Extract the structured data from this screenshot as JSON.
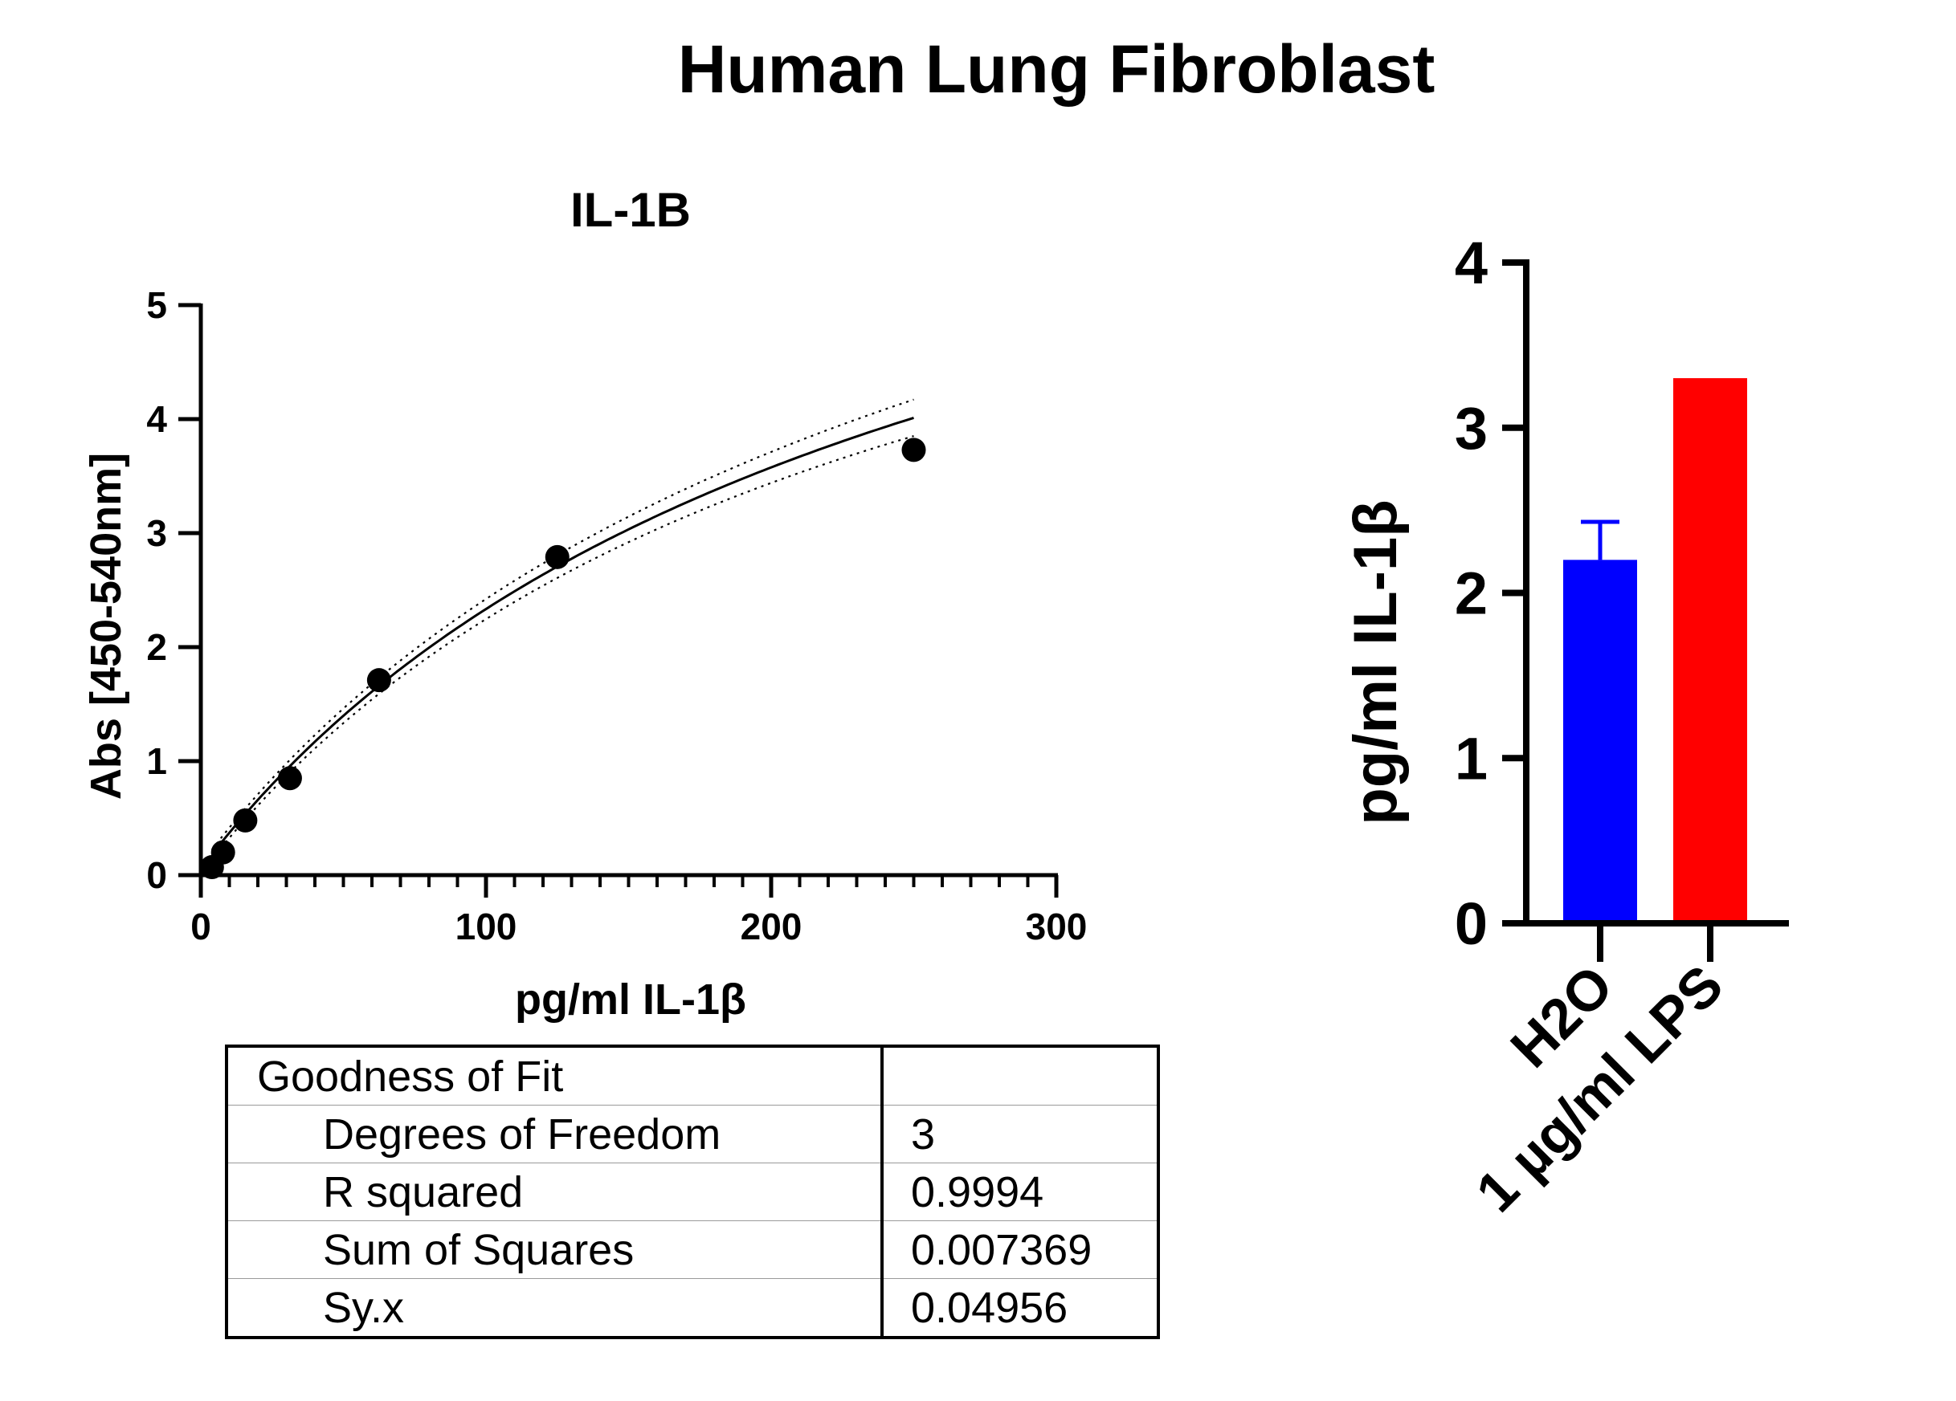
{
  "figure_title": "Human Lung Fibroblast",
  "chart_data": [
    {
      "type": "scatter",
      "title": "IL-1B",
      "xlabel": "pg/ml IL-1β",
      "ylabel": "Abs [450-540nm]",
      "xlim": [
        0,
        300
      ],
      "ylim": [
        0,
        5
      ],
      "x_ticks": [
        "0",
        "100",
        "200",
        "300"
      ],
      "y_ticks": [
        "0",
        "1",
        "2",
        "3",
        "4",
        "5"
      ],
      "series": [
        {
          "x": [
            3.9,
            7.8,
            15.6,
            31.25,
            62.5,
            125,
            250
          ],
          "y": [
            0.07,
            0.2,
            0.48,
            0.85,
            1.71,
            2.79,
            3.73
          ]
        }
      ],
      "fit_curve": "four-parameter logistic with dotted confidence band",
      "grid": false
    },
    {
      "type": "bar",
      "categories": [
        "H2O",
        "1 µg/ml LPS"
      ],
      "values": [
        2.2,
        3.3
      ],
      "error_plus": [
        0.23,
        0
      ],
      "colors": [
        "#0000ff",
        "#ff0000"
      ],
      "ylabel": "pg/ml IL-1β",
      "ylim": [
        0,
        4
      ],
      "y_ticks": [
        "0",
        "1",
        "2",
        "3",
        "4"
      ],
      "grid": false
    }
  ],
  "fit_table": {
    "header": "Goodness of Fit",
    "rows": [
      {
        "label": "Degrees of Freedom",
        "value": "3"
      },
      {
        "label": "R squared",
        "value": "0.9994"
      },
      {
        "label": "Sum of Squares",
        "value": "0.007369"
      },
      {
        "label": "Sy.x",
        "value": "0.04956"
      }
    ]
  }
}
